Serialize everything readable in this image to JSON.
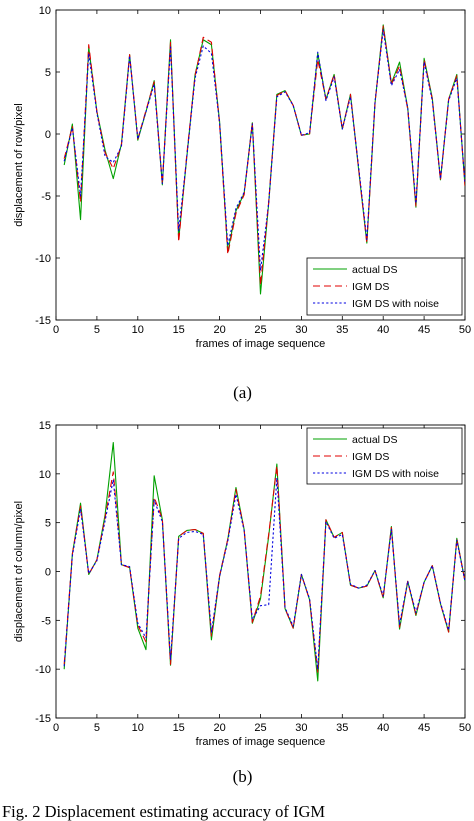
{
  "caption": "Fig. 2 Displacement estimating accuracy of IGM",
  "colors": {
    "actual": "#00a000",
    "igm": "#e00000",
    "igm_noise": "#0000e0"
  },
  "chart_data": [
    {
      "type": "line",
      "panel_label": "(a)",
      "xlabel": "frames of image sequence",
      "ylabel": "displacement of row/pixel",
      "xlim": [
        0,
        50
      ],
      "ylim": [
        -15,
        10
      ],
      "xticks": [
        0,
        5,
        10,
        15,
        20,
        25,
        30,
        35,
        40,
        45,
        50
      ],
      "yticks": [
        -15,
        -10,
        -5,
        0,
        5,
        10
      ],
      "grid": false,
      "legend_position": "bottom-right",
      "x": [
        1,
        2,
        3,
        4,
        5,
        6,
        7,
        8,
        9,
        10,
        11,
        12,
        13,
        14,
        15,
        16,
        17,
        18,
        19,
        20,
        21,
        22,
        23,
        24,
        25,
        26,
        27,
        28,
        29,
        30,
        31,
        32,
        33,
        34,
        35,
        36,
        37,
        38,
        39,
        40,
        41,
        42,
        43,
        44,
        45,
        46,
        47,
        48,
        49,
        50
      ],
      "series": [
        {
          "name": "actual DS",
          "style": "solid",
          "color_key": "actual",
          "values": [
            -2.5,
            0.8,
            -6.9,
            7.0,
            1.8,
            -1.3,
            -3.6,
            -0.8,
            6.4,
            -0.5,
            1.8,
            4.3,
            -4.1,
            7.6,
            -8.5,
            -1.8,
            4.8,
            7.6,
            7.2,
            1.0,
            -9.5,
            -6.2,
            -4.8,
            0.9,
            -12.9,
            -5.6,
            3.2,
            3.5,
            2.3,
            -0.1,
            0.0,
            6.5,
            2.8,
            4.8,
            0.4,
            3.2,
            -2.9,
            -8.8,
            2.5,
            8.8,
            4.1,
            5.8,
            2.1,
            -5.9,
            6.1,
            2.9,
            -3.7,
            2.8,
            4.8,
            -4.2
          ]
        },
        {
          "name": "IGM DS",
          "style": "dash",
          "color_key": "igm",
          "values": [
            -2.0,
            0.6,
            -5.5,
            7.2,
            1.8,
            -1.5,
            -2.8,
            -0.9,
            6.4,
            -0.4,
            1.9,
            4.2,
            -4.0,
            7.4,
            -8.7,
            -1.6,
            4.7,
            7.8,
            7.4,
            0.8,
            -9.7,
            -6.4,
            -4.9,
            0.9,
            -12.2,
            -5.5,
            3.1,
            3.5,
            2.3,
            -0.1,
            0.0,
            6.0,
            2.8,
            4.8,
            0.4,
            3.2,
            -2.8,
            -8.8,
            2.5,
            8.7,
            4.0,
            5.5,
            2.0,
            -5.8,
            6.0,
            2.8,
            -3.7,
            2.8,
            4.7,
            -4.2
          ]
        },
        {
          "name": "IGM DS with noise",
          "style": "dot",
          "color_key": "igm_noise",
          "values": [
            -2.2,
            0.5,
            -5.0,
            6.5,
            1.7,
            -1.8,
            -2.3,
            -1.0,
            6.3,
            -0.4,
            1.8,
            4.0,
            -4.0,
            7.0,
            -7.8,
            -1.8,
            4.5,
            7.1,
            6.5,
            0.9,
            -9.0,
            -6.0,
            -4.7,
            0.8,
            -11.0,
            -5.6,
            3.0,
            3.4,
            2.3,
            -0.1,
            0.1,
            6.6,
            2.7,
            4.6,
            0.4,
            3.0,
            -2.7,
            -8.5,
            2.6,
            8.4,
            3.9,
            5.2,
            2.1,
            -5.6,
            5.8,
            2.7,
            -3.6,
            2.7,
            4.5,
            -4.0
          ]
        }
      ]
    },
    {
      "type": "line",
      "panel_label": "(b)",
      "xlabel": "frames of image sequence",
      "ylabel": "displacement of column/pixel",
      "xlim": [
        0,
        50
      ],
      "ylim": [
        -15,
        15
      ],
      "xticks": [
        0,
        5,
        10,
        15,
        20,
        25,
        30,
        35,
        40,
        45,
        50
      ],
      "yticks": [
        -15,
        -10,
        -5,
        0,
        5,
        10,
        15
      ],
      "grid": false,
      "legend_position": "top-right",
      "x": [
        1,
        2,
        3,
        4,
        5,
        6,
        7,
        8,
        9,
        10,
        11,
        12,
        13,
        14,
        15,
        16,
        17,
        18,
        19,
        20,
        21,
        22,
        23,
        24,
        25,
        26,
        27,
        28,
        29,
        30,
        31,
        32,
        33,
        34,
        35,
        36,
        37,
        38,
        39,
        40,
        41,
        42,
        43,
        44,
        45,
        46,
        47,
        48,
        49,
        50
      ],
      "series": [
        {
          "name": "actual DS",
          "style": "solid",
          "color_key": "actual",
          "values": [
            -10.0,
            1.8,
            7.0,
            -0.3,
            1.2,
            5.8,
            13.2,
            0.7,
            0.4,
            -5.8,
            -8.0,
            9.8,
            5.3,
            -9.6,
            3.6,
            4.2,
            4.3,
            3.9,
            -7.0,
            -0.5,
            3.3,
            8.6,
            4.3,
            -5.3,
            -2.8,
            3.6,
            11.0,
            -3.8,
            -5.8,
            -0.3,
            -2.9,
            -11.2,
            5.3,
            3.5,
            4.0,
            -1.4,
            -1.7,
            -1.5,
            0.1,
            -2.7,
            4.6,
            -5.9,
            -1.0,
            -4.5,
            -1.1,
            0.6,
            -3.3,
            -6.2,
            3.4,
            -1.0
          ]
        },
        {
          "name": "IGM DS",
          "style": "dash",
          "color_key": "igm",
          "values": [
            -9.5,
            1.8,
            6.7,
            -0.3,
            1.2,
            5.5,
            10.2,
            0.7,
            0.4,
            -5.5,
            -7.2,
            7.6,
            5.4,
            -9.5,
            3.6,
            4.2,
            4.3,
            3.9,
            -6.6,
            -0.4,
            3.3,
            8.4,
            4.3,
            -5.2,
            -2.5,
            3.8,
            10.8,
            -3.8,
            -5.8,
            -0.3,
            -2.9,
            -10.3,
            5.3,
            3.5,
            4.0,
            -1.4,
            -1.7,
            -1.5,
            0.1,
            -2.7,
            4.5,
            -5.7,
            -1.0,
            -4.4,
            -1.1,
            0.6,
            -3.3,
            -6.2,
            3.3,
            -1.0
          ]
        },
        {
          "name": "IGM DS with noise",
          "style": "dot",
          "color_key": "igm_noise",
          "values": [
            -9.7,
            1.6,
            6.4,
            -0.2,
            1.1,
            5.2,
            9.4,
            0.7,
            0.5,
            -5.3,
            -6.8,
            7.3,
            5.1,
            -9.0,
            3.4,
            4.0,
            4.1,
            3.8,
            -6.2,
            -0.5,
            3.1,
            7.9,
            4.2,
            -4.9,
            -3.5,
            -3.4,
            9.6,
            -3.7,
            -5.6,
            -0.3,
            -2.8,
            -10.0,
            5.1,
            3.4,
            3.8,
            -1.3,
            -1.7,
            -1.4,
            0.1,
            -2.5,
            4.3,
            -5.4,
            -1.0,
            -4.2,
            -1.1,
            0.6,
            -3.2,
            -6.0,
            3.2,
            -1.0
          ]
        }
      ]
    }
  ]
}
